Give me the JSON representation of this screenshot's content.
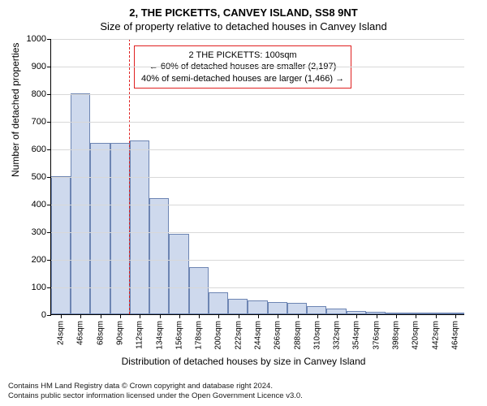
{
  "title_main": "2, THE PICKETTS, CANVEY ISLAND, SS8 9NT",
  "title_sub": "Size of property relative to detached houses in Canvey Island",
  "y_axis": {
    "label": "Number of detached properties",
    "min": 0,
    "max": 1000,
    "step": 100
  },
  "x_axis": {
    "label": "Distribution of detached houses by size in Canvey Island",
    "unit_suffix": "sqm",
    "categories": [
      24,
      46,
      68,
      90,
      112,
      134,
      156,
      178,
      200,
      222,
      244,
      266,
      288,
      310,
      332,
      354,
      376,
      398,
      420,
      442,
      464
    ]
  },
  "bars": {
    "values": [
      500,
      800,
      620,
      620,
      630,
      420,
      290,
      170,
      80,
      55,
      50,
      45,
      40,
      30,
      20,
      12,
      8,
      6,
      3,
      2,
      5
    ],
    "fill_color": "#ced9ed",
    "border_color": "#6d85b3"
  },
  "marker": {
    "value_sqm": 100,
    "color": "#e02020",
    "annotation": {
      "line1": "2 THE PICKETTS: 100sqm",
      "line2": "← 60% of detached houses are smaller (2,197)",
      "line3": "40% of semi-detached houses are larger (1,466) →"
    }
  },
  "footer": {
    "line1": "Contains HM Land Registry data © Crown copyright and database right 2024.",
    "line2": "Contains public sector information licensed under the Open Government Licence v3.0."
  },
  "style": {
    "background": "#ffffff",
    "grid_color": "#d8d8d8",
    "title_fontsize": 13,
    "axis_label_fontsize": 12,
    "tick_fontsize": 11,
    "footer_fontsize": 9.5
  }
}
